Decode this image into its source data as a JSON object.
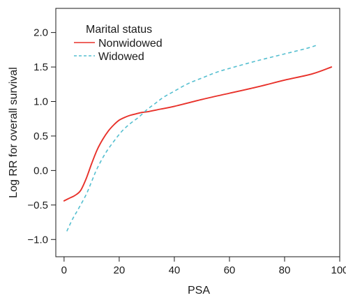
{
  "chart_data": {
    "type": "line",
    "xlabel": "PSA",
    "ylabel": "Log RR for overall survival",
    "xlim": [
      -3,
      100
    ],
    "ylim": [
      -1.25,
      2.35
    ],
    "x_ticks": [
      0,
      20,
      40,
      60,
      80,
      100
    ],
    "y_ticks": [
      -1.0,
      -0.5,
      0.0,
      0.5,
      1.0,
      1.5,
      2.0
    ],
    "x_tick_labels": [
      "0",
      "20",
      "40",
      "60",
      "80",
      "100"
    ],
    "y_tick_labels": [
      "−1.0",
      "−0.5",
      "0.0",
      "0.5",
      "1.0",
      "1.5",
      "2.0"
    ],
    "grid": false,
    "legend": {
      "title": "Marital status",
      "position": "top-left"
    },
    "series": [
      {
        "name": "Nonwidowed",
        "color": "#e8312a",
        "style": "solid",
        "points": [
          [
            0,
            -0.44
          ],
          [
            2,
            -0.4
          ],
          [
            4,
            -0.36
          ],
          [
            6,
            -0.29
          ],
          [
            8,
            -0.12
          ],
          [
            10,
            0.1
          ],
          [
            12,
            0.3
          ],
          [
            14,
            0.45
          ],
          [
            16,
            0.57
          ],
          [
            18,
            0.66
          ],
          [
            20,
            0.73
          ],
          [
            22,
            0.77
          ],
          [
            24,
            0.8
          ],
          [
            26,
            0.82
          ],
          [
            28,
            0.84
          ],
          [
            30,
            0.85
          ],
          [
            35,
            0.89
          ],
          [
            40,
            0.93
          ],
          [
            50,
            1.03
          ],
          [
            60,
            1.12
          ],
          [
            70,
            1.21
          ],
          [
            80,
            1.31
          ],
          [
            90,
            1.4
          ],
          [
            97,
            1.5
          ]
        ]
      },
      {
        "name": "Widowed",
        "color": "#55bfd0",
        "style": "dashed",
        "points": [
          [
            1,
            -0.88
          ],
          [
            3,
            -0.71
          ],
          [
            5,
            -0.57
          ],
          [
            8,
            -0.35
          ],
          [
            10,
            -0.16
          ],
          [
            12,
            0.03
          ],
          [
            15,
            0.25
          ],
          [
            18,
            0.42
          ],
          [
            21,
            0.57
          ],
          [
            24,
            0.68
          ],
          [
            27,
            0.77
          ],
          [
            30,
            0.88
          ],
          [
            33,
            0.97
          ],
          [
            36,
            1.06
          ],
          [
            40,
            1.15
          ],
          [
            45,
            1.26
          ],
          [
            50,
            1.34
          ],
          [
            55,
            1.42
          ],
          [
            60,
            1.48
          ],
          [
            70,
            1.59
          ],
          [
            80,
            1.69
          ],
          [
            88,
            1.77
          ],
          [
            92,
            1.82
          ]
        ]
      }
    ]
  }
}
